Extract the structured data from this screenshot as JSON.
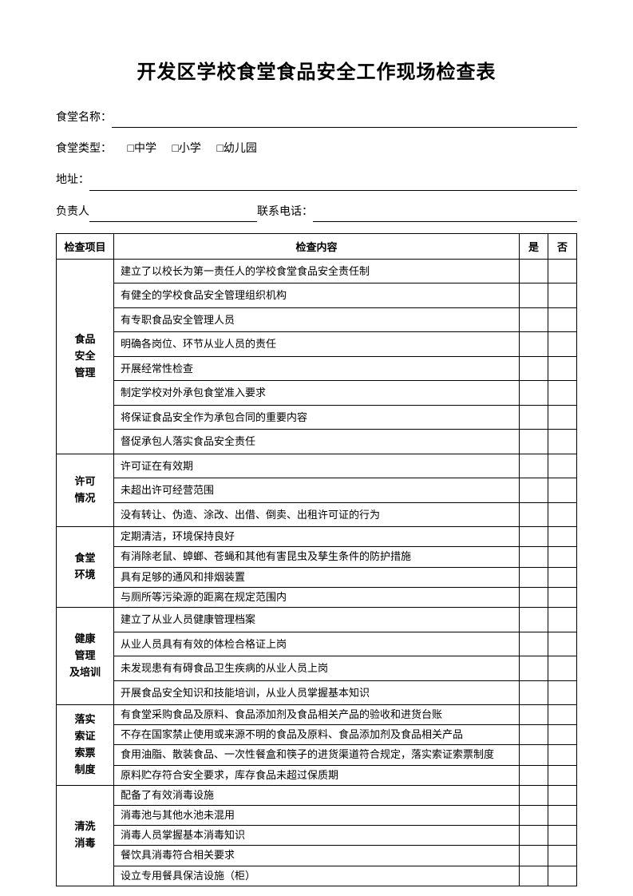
{
  "title": "开发区学校食堂食品安全工作现场检查表",
  "fields": {
    "name_label": "食堂名称：",
    "type_label": "食堂类型：",
    "type_options": [
      "□中学",
      "□小学",
      "□幼儿园"
    ],
    "address_label": "地址：",
    "owner_label": "负责人",
    "phone_label": "联系电话："
  },
  "table": {
    "headers": {
      "category": "检查项目",
      "content": "检查内容",
      "yes": "是",
      "no": "否"
    },
    "sections": [
      {
        "category": "食品\n安全\n管理",
        "items": [
          "建立了以校长为第一责任人的学校食堂食品安全责任制",
          "有健全的学校食品安全管理组织机构",
          "有专职食品安全管理人员",
          "明确各岗位、环节从业人员的责任",
          "开展经常性检查",
          "制定学校对外承包食堂准入要求",
          "将保证食品安全作为承包合同的重要内容",
          "督促承包人落实食品安全责任"
        ],
        "tight": false
      },
      {
        "category": "许可\n情况",
        "items": [
          "许可证在有效期",
          "未超出许可经营范围",
          "没有转让、伪造、涂改、出借、倒卖、出租许可证的行为"
        ],
        "tight": false
      },
      {
        "category": "食堂\n环境",
        "items": [
          "定期清洁，环境保持良好",
          "有消除老鼠、蟑螂、苍蝇和其他有害昆虫及孳生条件的防护措施",
          "具有足够的通风和排烟装置",
          "与厕所等污染源的距离在规定范围内"
        ],
        "tight": true
      },
      {
        "category": "健康\n管理\n及培训",
        "items": [
          "建立了从业人员健康管理档案",
          "从业人员具有有效的体检合格证上岗",
          "未发现患有有碍食品卫生疾病的从业人员上岗",
          "开展食品安全知识和技能培训，从业人员掌握基本知识"
        ],
        "tight": false
      },
      {
        "category": "落实\n索证\n索票\n制度",
        "items": [
          "有食堂采购食品及原料、食品添加剂及食品相关产品的验收和进货台账",
          "不存在国家禁止使用或来源不明的食品及原料、食品添加剂及食品相关产品",
          "食用油脂、散装食品、一次性餐盒和筷子的进货渠道符合规定，落实索证索票制度",
          "原料贮存符合安全要求，库存食品未超过保质期"
        ],
        "tight": true
      },
      {
        "category": "清洗\n消毒",
        "items": [
          "配备了有效消毒设施",
          "消毒池与其他水池未混用",
          "消毒人员掌握基本消毒知识",
          "餐饮具消毒符合相关要求",
          "设立专用餐具保洁设施（柜）"
        ],
        "tight": true
      }
    ]
  }
}
